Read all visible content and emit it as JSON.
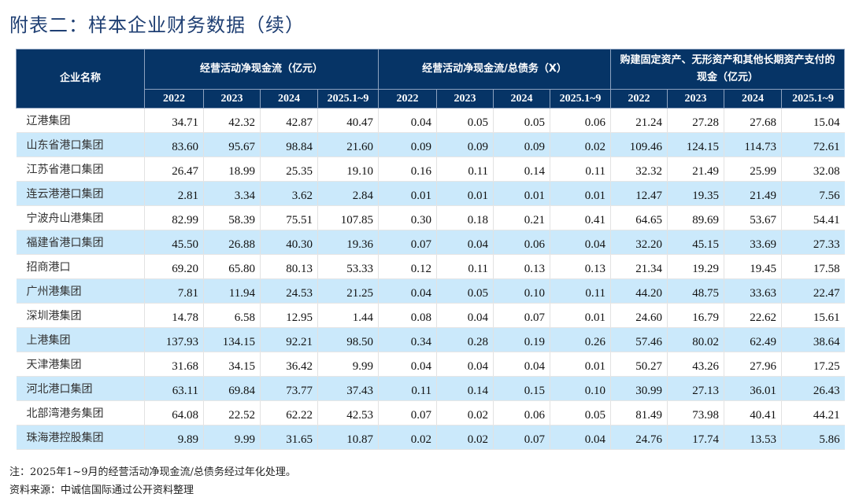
{
  "title": "附表二：样本企业财务数据（续）",
  "table": {
    "name_header": "企业名称",
    "groups": [
      "经营活动净现金流（亿元）",
      "经营活动净现金流/总债务（X）",
      "购建固定资产、无形资产和其他长期资产支付的现金（亿元）"
    ],
    "years": [
      "2022",
      "2023",
      "2024",
      "2025.1~9"
    ],
    "rows": [
      {
        "name": "辽港集团",
        "values": [
          "34.71",
          "42.32",
          "42.87",
          "40.47",
          "0.04",
          "0.05",
          "0.05",
          "0.06",
          "21.24",
          "27.28",
          "27.68",
          "15.04"
        ]
      },
      {
        "name": "山东省港口集团",
        "values": [
          "83.60",
          "95.67",
          "98.84",
          "21.60",
          "0.09",
          "0.09",
          "0.09",
          "0.02",
          "109.46",
          "124.15",
          "114.73",
          "72.61"
        ]
      },
      {
        "name": "江苏省港口集团",
        "values": [
          "26.47",
          "18.99",
          "25.35",
          "19.10",
          "0.16",
          "0.11",
          "0.14",
          "0.11",
          "32.32",
          "21.49",
          "25.99",
          "32.08"
        ]
      },
      {
        "name": "连云港港口集团",
        "values": [
          "2.81",
          "3.34",
          "3.62",
          "2.84",
          "0.01",
          "0.01",
          "0.01",
          "0.01",
          "12.47",
          "19.35",
          "21.49",
          "7.56"
        ]
      },
      {
        "name": "宁波舟山港集团",
        "values": [
          "82.99",
          "58.39",
          "75.51",
          "107.85",
          "0.30",
          "0.18",
          "0.21",
          "0.41",
          "64.65",
          "89.69",
          "53.67",
          "54.41"
        ]
      },
      {
        "name": "福建省港口集团",
        "values": [
          "45.50",
          "26.88",
          "40.30",
          "19.36",
          "0.07",
          "0.04",
          "0.06",
          "0.04",
          "32.20",
          "45.15",
          "33.69",
          "27.33"
        ]
      },
      {
        "name": "招商港口",
        "values": [
          "69.20",
          "65.80",
          "80.13",
          "53.33",
          "0.12",
          "0.11",
          "0.13",
          "0.13",
          "21.34",
          "19.29",
          "19.45",
          "17.58"
        ]
      },
      {
        "name": "广州港集团",
        "values": [
          "7.81",
          "11.94",
          "24.53",
          "21.25",
          "0.04",
          "0.05",
          "0.10",
          "0.11",
          "44.20",
          "48.75",
          "33.63",
          "22.47"
        ]
      },
      {
        "name": "深圳港集团",
        "values": [
          "14.78",
          "6.58",
          "12.95",
          "1.44",
          "0.08",
          "0.04",
          "0.07",
          "0.01",
          "24.60",
          "16.79",
          "22.62",
          "15.61"
        ]
      },
      {
        "name": "上港集团",
        "values": [
          "137.93",
          "134.15",
          "92.21",
          "98.50",
          "0.34",
          "0.28",
          "0.19",
          "0.26",
          "57.46",
          "80.02",
          "62.49",
          "38.64"
        ]
      },
      {
        "name": "天津港集团",
        "values": [
          "31.68",
          "34.15",
          "36.42",
          "9.99",
          "0.04",
          "0.04",
          "0.04",
          "0.01",
          "50.27",
          "43.26",
          "27.96",
          "17.25"
        ]
      },
      {
        "name": "河北港口集团",
        "values": [
          "63.11",
          "69.84",
          "73.77",
          "37.43",
          "0.11",
          "0.14",
          "0.15",
          "0.10",
          "30.99",
          "27.13",
          "36.01",
          "26.43"
        ]
      },
      {
        "name": "北部湾港务集团",
        "values": [
          "64.08",
          "22.52",
          "62.22",
          "42.53",
          "0.07",
          "0.02",
          "0.06",
          "0.05",
          "81.49",
          "73.98",
          "40.41",
          "44.21"
        ]
      },
      {
        "name": "珠海港控股集团",
        "values": [
          "9.89",
          "9.99",
          "31.65",
          "10.87",
          "0.02",
          "0.02",
          "0.07",
          "0.04",
          "24.76",
          "17.74",
          "13.53",
          "5.86"
        ]
      }
    ]
  },
  "note": "注：2025年1~9月的经营活动净现金流/总债务经过年化处理。",
  "source": "资料来源：中诚信国际通过公开资料整理",
  "colors": {
    "header_bg": "#063466",
    "alt_row_bg": "#cbe9fb",
    "title": "#1f3f73"
  }
}
